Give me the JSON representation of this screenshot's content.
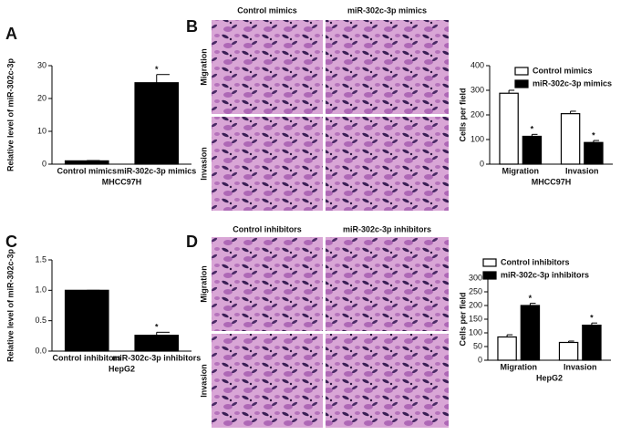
{
  "panel_labels": [
    "A",
    "B",
    "C",
    "D"
  ],
  "images": [
    {
      "columns": [
        "Control mimics",
        "miR-302c-3p mimics"
      ],
      "rows": [
        "Migration",
        "Invasion"
      ]
    },
    {
      "columns": [
        "Control inhibitors",
        "miR-302c-3p inhibitors"
      ],
      "rows": [
        "Migration",
        "Invasion"
      ]
    }
  ],
  "chart_data": [
    {
      "type": "bar",
      "ylabel": "Relative level of miR-302c-3p",
      "xlabel": "MHCC97H",
      "categories": [
        "Control mimics",
        "miR-302c-3p mimics"
      ],
      "values": [
        1,
        24.8
      ],
      "errors": [
        0.1,
        2.5
      ],
      "marks": [
        null,
        "*"
      ],
      "color": "#000000",
      "ylim": [
        0,
        30
      ],
      "yticks": [
        0,
        10,
        20,
        30
      ]
    },
    {
      "type": "bar",
      "ylabel": "Cells per field",
      "xlabel": "MHCC97H",
      "categories": [
        "Migration",
        "Invasion"
      ],
      "series": [
        {
          "name": "Control mimics",
          "color": "#ffffff",
          "values": [
            288,
            205
          ],
          "errors": [
            12,
            10
          ],
          "marks": [
            null,
            null
          ]
        },
        {
          "name": "miR-302c-3p mimics",
          "color": "#000000",
          "values": [
            113,
            88
          ],
          "errors": [
            8,
            8
          ],
          "marks": [
            "*",
            "*"
          ]
        }
      ],
      "ylim": [
        0,
        400
      ],
      "yticks": [
        0,
        100,
        200,
        300,
        400
      ]
    },
    {
      "type": "bar",
      "ylabel": "Relative level of miR-302c-3p",
      "xlabel": "HepG2",
      "categories": [
        "Control inhibitors",
        "miR-302c-3p inhibitors"
      ],
      "values": [
        1.0,
        0.26
      ],
      "errors": [
        0,
        0.05
      ],
      "marks": [
        null,
        "*"
      ],
      "color": "#000000",
      "ylim": [
        0,
        1.5
      ],
      "yticks": [
        {
          "value": 0,
          "label": "0.0"
        },
        0.5,
        {
          "value": 1,
          "label": "1.0"
        },
        1.5
      ]
    },
    {
      "type": "bar",
      "ylabel": "Cells per field",
      "xlabel": "HepG2",
      "categories": [
        "Migration",
        "Invasion"
      ],
      "series": [
        {
          "name": "Control inhibitors",
          "color": "#ffffff",
          "values": [
            85,
            65
          ],
          "errors": [
            8,
            5
          ],
          "marks": [
            null,
            null
          ]
        },
        {
          "name": "miR-302c-3p inhibitors",
          "color": "#000000",
          "values": [
            200,
            128
          ],
          "errors": [
            8,
            8
          ],
          "marks": [
            "*",
            "*"
          ]
        }
      ],
      "ylim": [
        0,
        300
      ],
      "yticks": [
        0,
        50,
        100,
        150,
        200,
        250,
        300
      ]
    }
  ]
}
